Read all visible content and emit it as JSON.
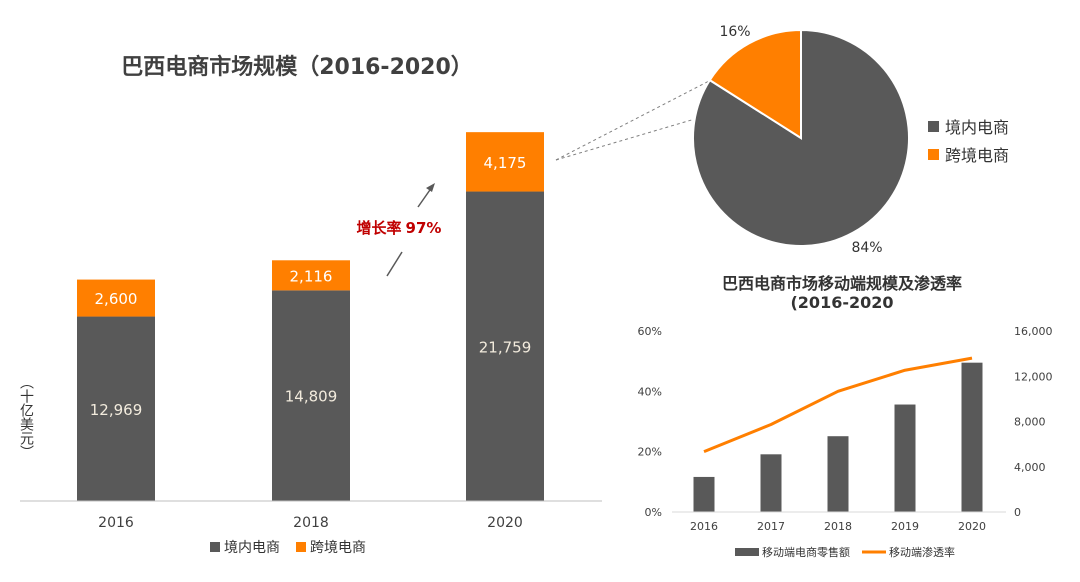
{
  "colors": {
    "domestic": "#595959",
    "crossborder": "#FF7F00",
    "mobile_bar": "#595959",
    "penetration": "#FF7F00",
    "growth": "#C00000",
    "axis": "#bfbfbf"
  },
  "growth_annotation": {
    "label": "增长率",
    "value": "97%"
  },
  "chart_data": [
    {
      "type": "bar",
      "stacked": true,
      "title": "巴西电商市场规模（2016-2020）",
      "ylabel": "（十亿美元）",
      "categories": [
        "2016",
        "2018",
        "2020"
      ],
      "series": [
        {
          "name": "境内电商",
          "color": "#595959",
          "values": [
            12969,
            14809,
            21759
          ],
          "labels": [
            "12,969",
            "14,809",
            "21,759"
          ]
        },
        {
          "name": "跨境电商",
          "color": "#FF7F00",
          "values": [
            2600,
            2116,
            4175
          ],
          "labels": [
            "2,600",
            "2,116",
            "4,175"
          ]
        }
      ],
      "ylim": [
        0,
        27000
      ],
      "grid": false,
      "legend": "bottom"
    },
    {
      "type": "pie",
      "categories": [
        "境内电商",
        "跨境电商"
      ],
      "values": [
        84,
        16
      ],
      "labels": [
        "84%",
        "16%"
      ],
      "colors": [
        "#595959",
        "#FF7F00"
      ],
      "legend": "right"
    },
    {
      "type": "bar",
      "title": "巴西电商市场移动端规模及渗透率",
      "subtitle": "(2016-2020",
      "categories": [
        "2016",
        "2017",
        "2018",
        "2019",
        "2020"
      ],
      "series": [
        {
          "name": "移动端电商零售额",
          "type": "bar",
          "axis": "right",
          "values": [
            3100,
            5100,
            6700,
            9500,
            13200
          ]
        },
        {
          "name": "移动端渗透率",
          "type": "line",
          "axis": "left",
          "values": [
            0.2,
            0.29,
            0.4,
            0.47,
            0.51
          ]
        }
      ],
      "left_axis": {
        "ylim": [
          0,
          0.6
        ],
        "ticks": [
          "0%",
          "20%",
          "40%",
          "60%"
        ]
      },
      "right_axis": {
        "ylim": [
          0,
          16000
        ],
        "ticks": [
          "0",
          "4,000",
          "8,000",
          "12,000",
          "16,000"
        ]
      },
      "grid": false,
      "legend": "bottom"
    }
  ]
}
